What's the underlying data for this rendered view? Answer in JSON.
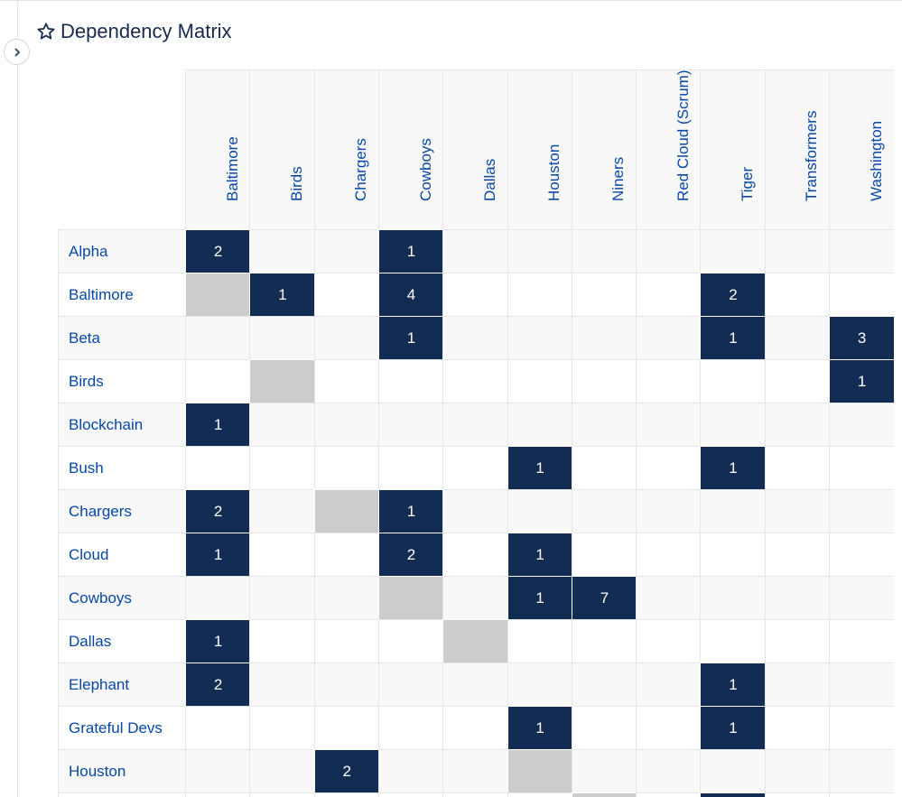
{
  "header": {
    "title": "Dependency Matrix",
    "star_icon": "star-outline-icon",
    "toggle_icon": "chevron-right-icon"
  },
  "colors": {
    "cell_dependency": "#132c54",
    "cell_self": "#cccccc",
    "link": "#0747a6",
    "title": "#172b4d"
  },
  "matrix": {
    "columns": [
      "Baltimore",
      "Birds",
      "Chargers",
      "Cowboys",
      "Dallas",
      "Houston",
      "Niners",
      "Red Cloud (Scrum)",
      "Tiger",
      "Transformers",
      "Washington"
    ],
    "rows": [
      {
        "label": "Alpha",
        "cells": [
          "2",
          "",
          "",
          "1",
          "",
          "",
          "",
          "",
          "",
          "",
          ""
        ]
      },
      {
        "label": "Baltimore",
        "cells": [
          "self",
          "1",
          "",
          "4",
          "",
          "",
          "",
          "",
          "2",
          "",
          ""
        ]
      },
      {
        "label": "Beta",
        "cells": [
          "",
          "",
          "",
          "1",
          "",
          "",
          "",
          "",
          "1",
          "",
          "3"
        ]
      },
      {
        "label": "Birds",
        "cells": [
          "",
          "self",
          "",
          "",
          "",
          "",
          "",
          "",
          "",
          "",
          "1"
        ]
      },
      {
        "label": "Blockchain",
        "cells": [
          "1",
          "",
          "",
          "",
          "",
          "",
          "",
          "",
          "",
          "",
          ""
        ]
      },
      {
        "label": "Bush",
        "cells": [
          "",
          "",
          "",
          "",
          "",
          "1",
          "",
          "",
          "1",
          "",
          ""
        ]
      },
      {
        "label": "Chargers",
        "cells": [
          "2",
          "",
          "self",
          "1",
          "",
          "",
          "",
          "",
          "",
          "",
          ""
        ]
      },
      {
        "label": "Cloud",
        "cells": [
          "1",
          "",
          "",
          "2",
          "",
          "1",
          "",
          "",
          "",
          "",
          ""
        ]
      },
      {
        "label": "Cowboys",
        "cells": [
          "",
          "",
          "",
          "self",
          "",
          "1",
          "7",
          "",
          "",
          "",
          ""
        ]
      },
      {
        "label": "Dallas",
        "cells": [
          "1",
          "",
          "",
          "",
          "self",
          "",
          "",
          "",
          "",
          "",
          ""
        ]
      },
      {
        "label": "Elephant",
        "cells": [
          "2",
          "",
          "",
          "",
          "",
          "",
          "",
          "",
          "1",
          "",
          ""
        ]
      },
      {
        "label": "Grateful Devs",
        "cells": [
          "",
          "",
          "",
          "",
          "",
          "1",
          "",
          "",
          "1",
          "",
          ""
        ]
      },
      {
        "label": "Houston",
        "cells": [
          "",
          "",
          "2",
          "",
          "",
          "self",
          "",
          "",
          "",
          "",
          ""
        ]
      },
      {
        "label": "",
        "cells": [
          "",
          "",
          "",
          "",
          "",
          "",
          "self",
          "",
          "dep",
          "",
          ""
        ]
      }
    ]
  }
}
